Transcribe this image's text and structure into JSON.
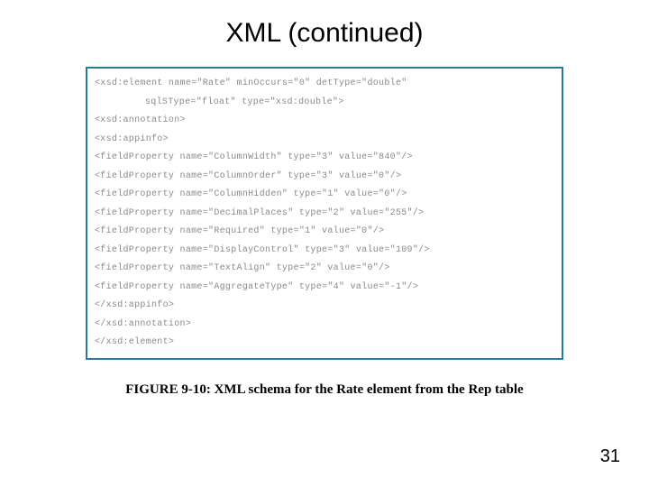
{
  "title": "XML (continued)",
  "code": {
    "lines": [
      {
        "text": "<xsd:element name=\"Rate\" minOccurs=\"0\" detType=\"double\"",
        "indent": false
      },
      {
        "text": "sqlSType=\"float\" type=\"xsd:double\">",
        "indent": true
      },
      {
        "text": "<xsd:annotation>",
        "indent": false
      },
      {
        "text": "<xsd:appinfo>",
        "indent": false
      },
      {
        "text": "<fieldProperty name=\"ColumnWidth\" type=\"3\" value=\"840\"/>",
        "indent": false
      },
      {
        "text": "<fieldProperty name=\"ColumnOrder\" type=\"3\" value=\"0\"/>",
        "indent": false
      },
      {
        "text": "<fieldProperty name=\"ColumnHidden\" type=\"1\" value=\"0\"/>",
        "indent": false
      },
      {
        "text": "<fieldProperty name=\"DecimalPlaces\" type=\"2\" value=\"255\"/>",
        "indent": false
      },
      {
        "text": "<fieldProperty name=\"Required\" type=\"1\" value=\"0\"/>",
        "indent": false
      },
      {
        "text": "<fieldProperty name=\"DisplayControl\" type=\"3\" value=\"109\"/>",
        "indent": false
      },
      {
        "text": "<fieldProperty name=\"TextAlign\" type=\"2\" value=\"0\"/>",
        "indent": false
      },
      {
        "text": "<fieldProperty name=\"AggregateType\" type=\"4\" value=\"-1\"/>",
        "indent": false
      },
      {
        "text": "</xsd:appinfo>",
        "indent": false
      },
      {
        "text": "</xsd:annotation>",
        "indent": false
      },
      {
        "text": "</xsd:element>",
        "indent": false
      }
    ]
  },
  "caption": "FIGURE 9-10: XML schema for the Rate element from the Rep table",
  "pageNumber": "31",
  "style": {
    "border_color": "#2a7a9a",
    "code_color": "#8a8a8a",
    "background": "#ffffff",
    "title_fontsize": 30,
    "code_fontsize": 10,
    "caption_fontsize": 15
  }
}
